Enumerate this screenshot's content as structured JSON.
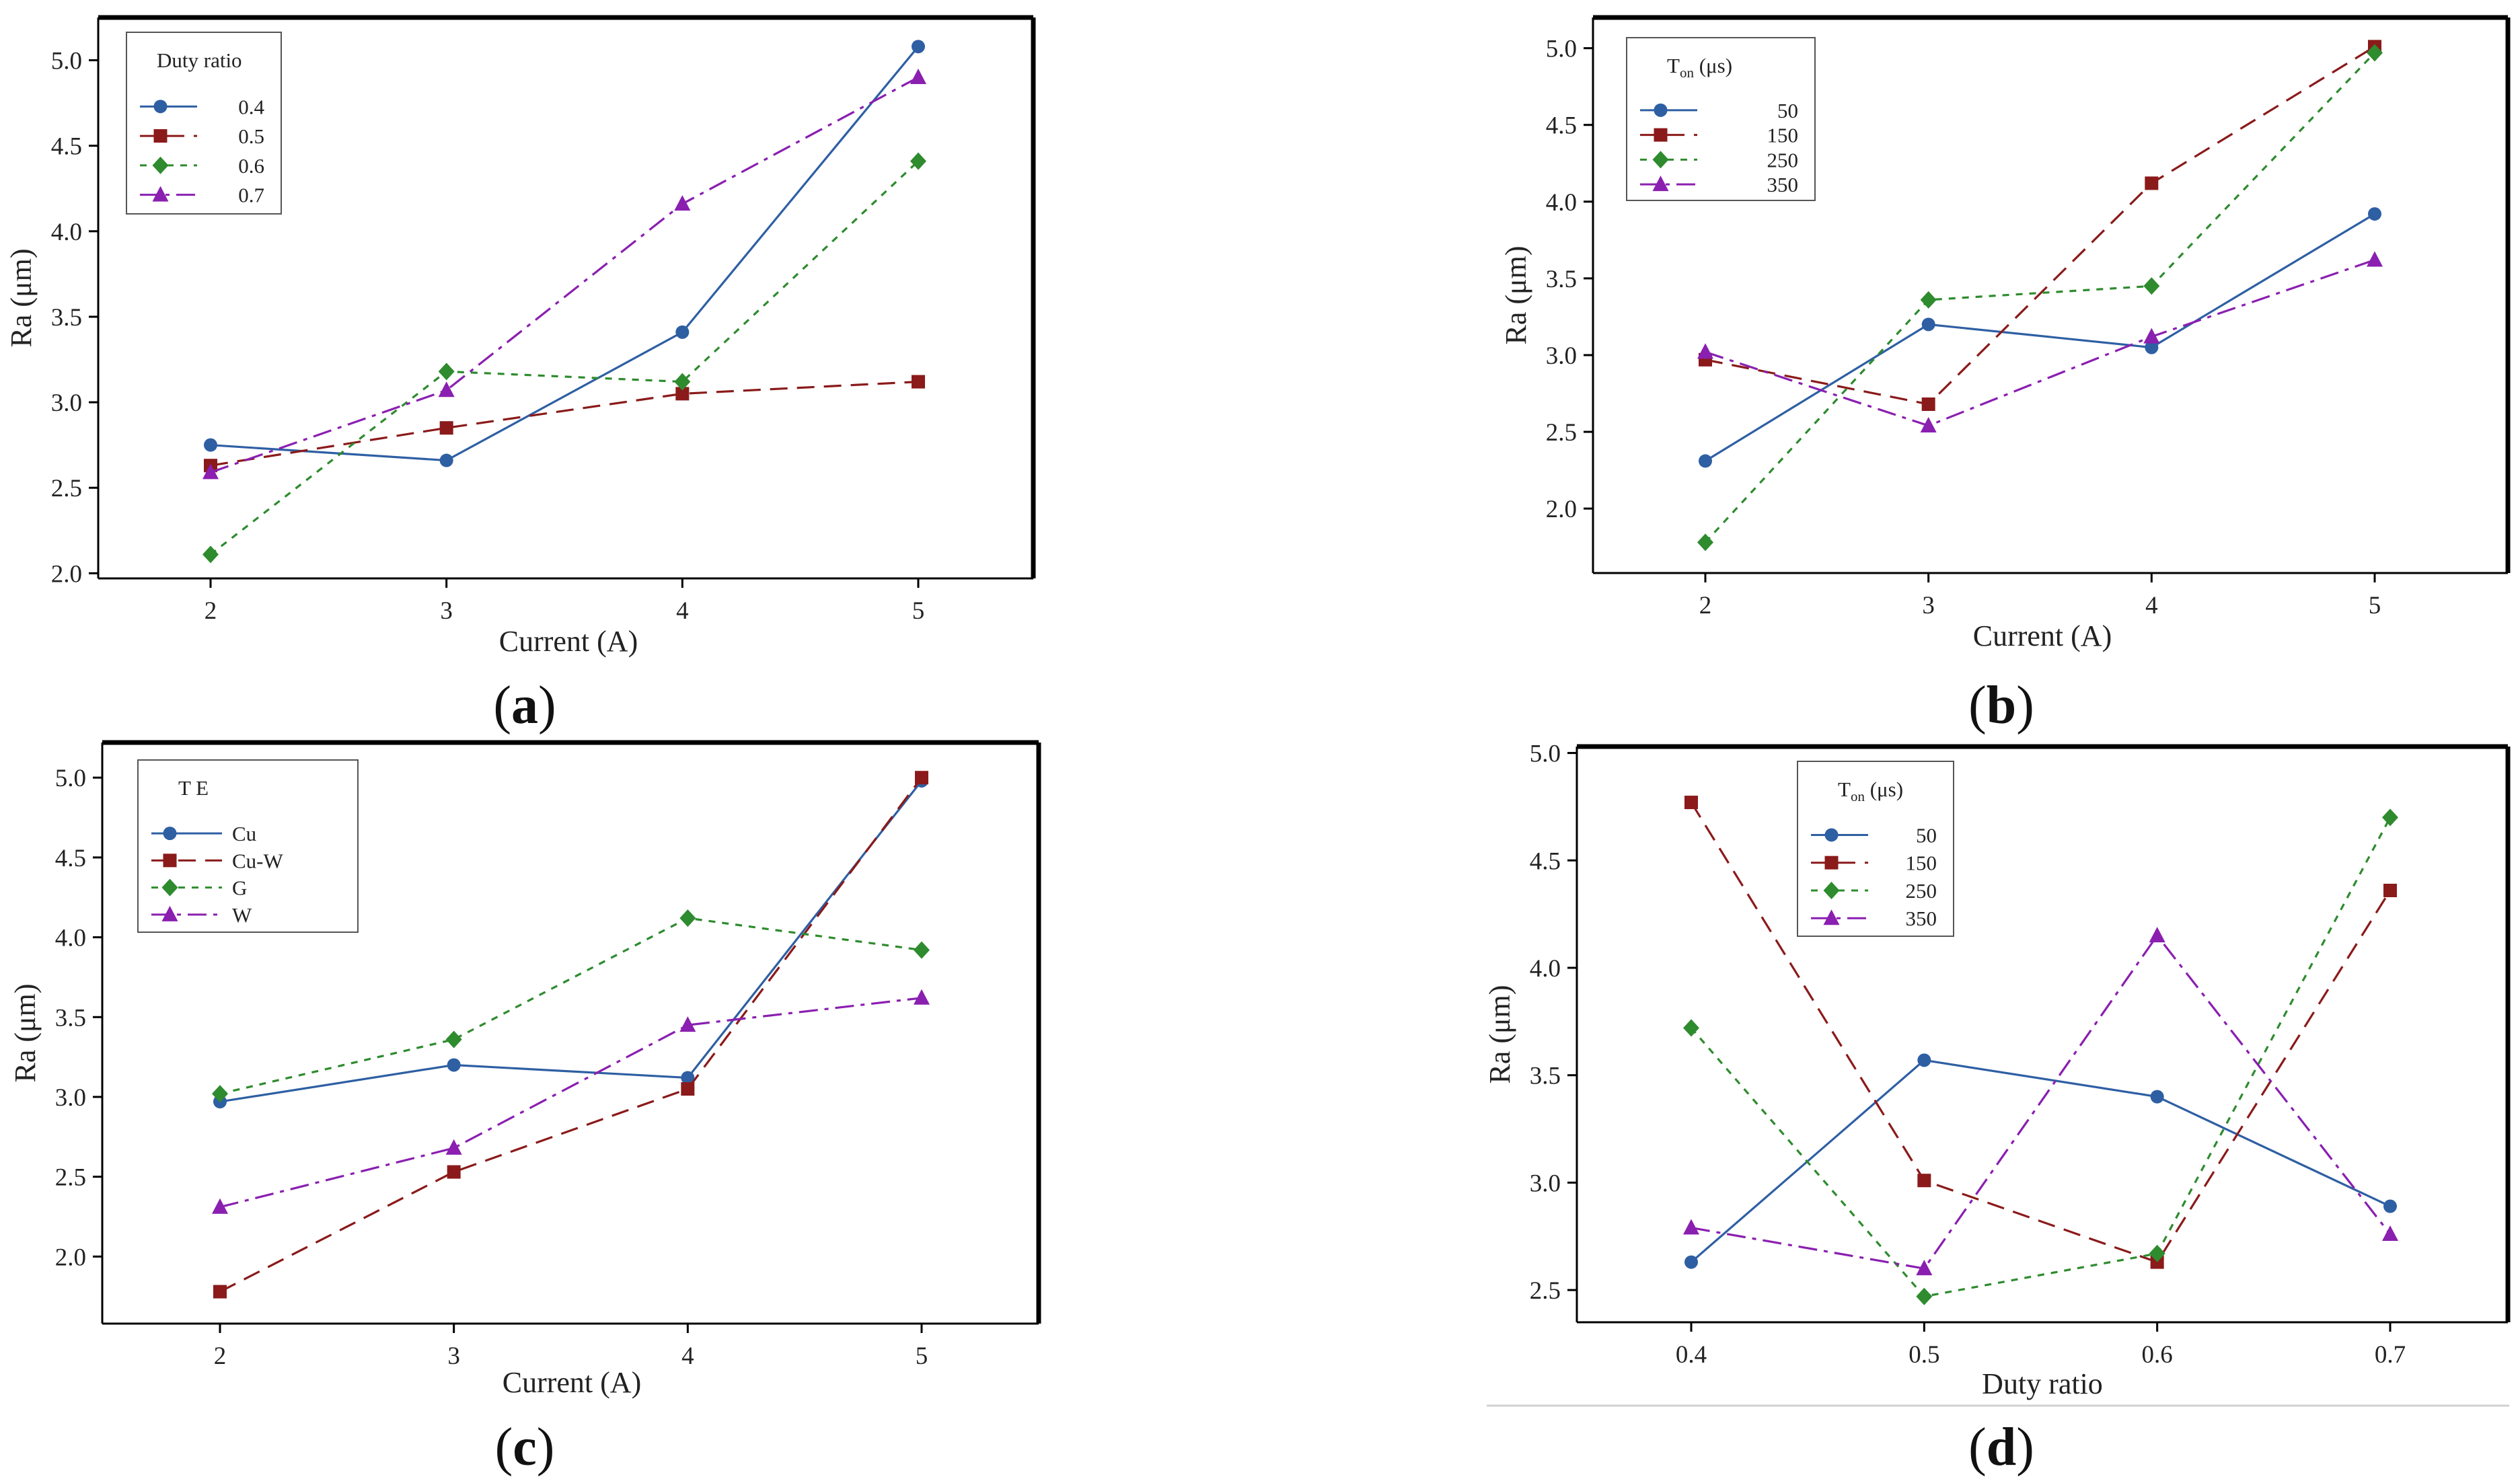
{
  "colors": {
    "series": [
      "#2e5fa3",
      "#8b1a1a",
      "#2e8b2e",
      "#8a1fb0"
    ],
    "axis": "#000000",
    "tick_text": "#333333"
  },
  "chart_data": [
    {
      "type": "line",
      "label": "(a)",
      "label_letter": "a",
      "xlabel": "Current (A)",
      "ylabel": "Ra (μm)",
      "x": [
        2,
        3,
        4,
        5
      ],
      "xticks": [
        "2",
        "3",
        "4",
        "5"
      ],
      "ylim": [
        1.97,
        5.25
      ],
      "yticks": [
        "2.0",
        "2.5",
        "3.0",
        "3.5",
        "4.0",
        "4.5",
        "5.0"
      ],
      "yticks_values": [
        2.0,
        2.5,
        3.0,
        3.5,
        4.0,
        4.5,
        5.0
      ],
      "legend_title": "Duty ratio",
      "legend_position": "top-left",
      "series": [
        {
          "name": "0.4",
          "marker": "circle",
          "dash": "solid",
          "values": [
            2.75,
            2.66,
            3.41,
            5.08
          ]
        },
        {
          "name": "0.5",
          "marker": "square",
          "dash": "dashed",
          "values": [
            2.63,
            2.85,
            3.05,
            3.12
          ]
        },
        {
          "name": "0.6",
          "marker": "diamond",
          "dash": "dotted",
          "values": [
            2.11,
            3.18,
            3.12,
            4.41
          ]
        },
        {
          "name": "0.7",
          "marker": "triangle",
          "dash": "dashdot",
          "values": [
            2.59,
            3.07,
            4.16,
            4.9
          ]
        }
      ]
    },
    {
      "type": "line",
      "label": "(b)",
      "label_letter": "b",
      "xlabel": "Current (A)",
      "ylabel": "Ra (μm)",
      "x": [
        2,
        3,
        4,
        5
      ],
      "xticks": [
        "2",
        "3",
        "4",
        "5"
      ],
      "ylim": [
        1.58,
        5.2
      ],
      "yticks": [
        "2.0",
        "2.5",
        "3.0",
        "3.5",
        "4.0",
        "4.5",
        "5.0"
      ],
      "yticks_values": [
        2.0,
        2.5,
        3.0,
        3.5,
        4.0,
        4.5,
        5.0
      ],
      "legend_title_main": "T",
      "legend_title_sub": "on",
      "legend_title_rest": " (μs)",
      "legend_position": "top-left",
      "series": [
        {
          "name": "50",
          "marker": "circle",
          "dash": "solid",
          "values": [
            2.31,
            3.2,
            3.05,
            3.92
          ]
        },
        {
          "name": "150",
          "marker": "square",
          "dash": "dashed",
          "values": [
            2.97,
            2.68,
            4.12,
            5.01
          ]
        },
        {
          "name": "250",
          "marker": "diamond",
          "dash": "dotted",
          "values": [
            1.78,
            3.36,
            3.45,
            4.97
          ]
        },
        {
          "name": "350",
          "marker": "triangle",
          "dash": "dashdot",
          "values": [
            3.02,
            2.54,
            3.12,
            3.62
          ]
        }
      ]
    },
    {
      "type": "line",
      "label": "(c)",
      "label_letter": "c",
      "xlabel": "Current (A)",
      "ylabel": "Ra (μm)",
      "x": [
        2,
        3,
        4,
        5
      ],
      "xticks": [
        "2",
        "3",
        "4",
        "5"
      ],
      "ylim": [
        1.58,
        5.22
      ],
      "yticks": [
        "2.0",
        "2.5",
        "3.0",
        "3.5",
        "4.0",
        "4.5",
        "5.0"
      ],
      "yticks_values": [
        2.0,
        2.5,
        3.0,
        3.5,
        4.0,
        4.5,
        5.0
      ],
      "legend_title": "T E",
      "legend_position": "top-left",
      "series": [
        {
          "name": "Cu",
          "marker": "circle",
          "dash": "solid",
          "values": [
            2.97,
            3.2,
            3.12,
            4.98
          ]
        },
        {
          "name": "Cu-W",
          "marker": "square",
          "dash": "dashed",
          "values": [
            1.78,
            2.53,
            3.05,
            5.0
          ]
        },
        {
          "name": "G",
          "marker": "diamond",
          "dash": "dotted",
          "values": [
            3.02,
            3.36,
            4.12,
            3.92
          ]
        },
        {
          "name": "W",
          "marker": "triangle",
          "dash": "dashdot",
          "values": [
            2.31,
            2.68,
            3.45,
            3.62
          ]
        }
      ]
    },
    {
      "type": "line",
      "label": "(d)",
      "label_letter": "d",
      "xlabel": "Duty ratio",
      "ylabel": "Ra (μm)",
      "x": [
        0.4,
        0.5,
        0.6,
        0.7
      ],
      "xticks": [
        "0.4",
        "0.5",
        "0.6",
        "0.7"
      ],
      "ylim": [
        2.35,
        5.03
      ],
      "yticks": [
        "2.5",
        "3.0",
        "3.5",
        "4.0",
        "4.5",
        "5.0"
      ],
      "yticks_values": [
        2.5,
        3.0,
        3.5,
        4.0,
        4.5,
        5.0
      ],
      "legend_title_main": "T",
      "legend_title_sub": "on",
      "legend_title_rest": " (μs)",
      "legend_position": "top-left",
      "series": [
        {
          "name": "50",
          "marker": "circle",
          "dash": "solid",
          "values": [
            2.63,
            3.57,
            3.4,
            2.89
          ]
        },
        {
          "name": "150",
          "marker": "square",
          "dash": "dashed",
          "values": [
            4.77,
            3.01,
            2.63,
            4.36
          ]
        },
        {
          "name": "250",
          "marker": "diamond",
          "dash": "dotted",
          "values": [
            3.72,
            2.47,
            2.67,
            4.7
          ]
        },
        {
          "name": "350",
          "marker": "triangle",
          "dash": "dashdot",
          "values": [
            2.79,
            2.6,
            4.15,
            2.76
          ]
        }
      ]
    }
  ]
}
